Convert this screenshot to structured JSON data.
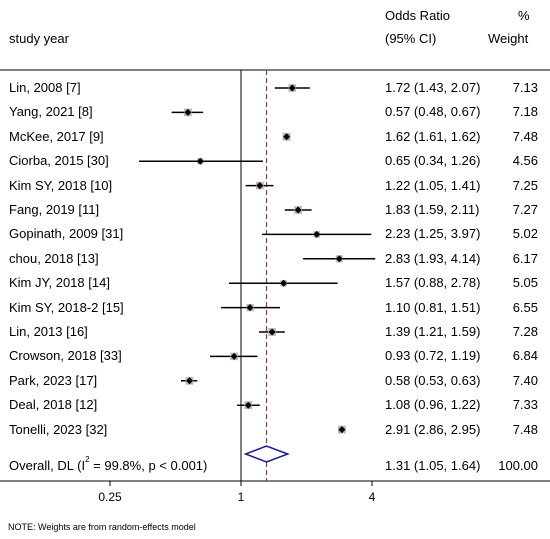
{
  "header": {
    "study_col": "study year",
    "or_col_line1": "Odds Ratio",
    "or_col_line2": "(95% CI)",
    "weight_col_line1": "%",
    "weight_col_line2": "Weight"
  },
  "note": "NOTE: Weights are from random-effects model",
  "colors": {
    "ref_line": "#8b3a4a",
    "diamond": "#1a1a8c",
    "box": "#b8b8b8"
  },
  "chart_data": {
    "type": "forest",
    "x_scale": "log",
    "null_value": 1,
    "xticks": [
      {
        "value": 0.25,
        "label": "0.25"
      },
      {
        "value": 1,
        "label": "1"
      },
      {
        "value": 4,
        "label": "4"
      }
    ],
    "studies": [
      {
        "label": "Lin, 2008 [7]",
        "or": 1.72,
        "lo": 1.43,
        "hi": 2.07,
        "ci_text": "1.72 (1.43, 2.07)",
        "weight": "7.13"
      },
      {
        "label": "Yang, 2021 [8]",
        "or": 0.57,
        "lo": 0.48,
        "hi": 0.67,
        "ci_text": "0.57 (0.48, 0.67)",
        "weight": "7.18"
      },
      {
        "label": "McKee, 2017 [9]",
        "or": 1.62,
        "lo": 1.61,
        "hi": 1.62,
        "ci_text": "1.62 (1.61, 1.62)",
        "weight": "7.48"
      },
      {
        "label": "Ciorba, 2015 [30]",
        "or": 0.65,
        "lo": 0.34,
        "hi": 1.26,
        "ci_text": "0.65 (0.34, 1.26)",
        "weight": "4.56"
      },
      {
        "label": "Kim SY, 2018 [10]",
        "or": 1.22,
        "lo": 1.05,
        "hi": 1.41,
        "ci_text": "1.22 (1.05, 1.41)",
        "weight": "7.25"
      },
      {
        "label": "Fang, 2019 [11]",
        "or": 1.83,
        "lo": 1.59,
        "hi": 2.11,
        "ci_text": "1.83 (1.59, 2.11)",
        "weight": "7.27"
      },
      {
        "label": "Gopinath, 2009 [31]",
        "or": 2.23,
        "lo": 1.25,
        "hi": 3.97,
        "ci_text": "2.23 (1.25, 3.97)",
        "weight": "5.02"
      },
      {
        "label": "chou, 2018 [13]",
        "or": 2.83,
        "lo": 1.93,
        "hi": 4.14,
        "ci_text": "2.83 (1.93, 4.14)",
        "weight": "6.17"
      },
      {
        "label": "Kim JY, 2018 [14]",
        "or": 1.57,
        "lo": 0.88,
        "hi": 2.78,
        "ci_text": "1.57 (0.88, 2.78)",
        "weight": "5.05"
      },
      {
        "label": "Kim SY, 2018-2 [15]",
        "or": 1.1,
        "lo": 0.81,
        "hi": 1.51,
        "ci_text": "1.10 (0.81, 1.51)",
        "weight": "6.55"
      },
      {
        "label": "Lin, 2013 [16]",
        "or": 1.39,
        "lo": 1.21,
        "hi": 1.59,
        "ci_text": "1.39 (1.21, 1.59)",
        "weight": "7.28"
      },
      {
        "label": "Crowson, 2018 [33]",
        "or": 0.93,
        "lo": 0.72,
        "hi": 1.19,
        "ci_text": "0.93 (0.72, 1.19)",
        "weight": "6.84"
      },
      {
        "label": "Park, 2023 [17]",
        "or": 0.58,
        "lo": 0.53,
        "hi": 0.63,
        "ci_text": "0.58 (0.53, 0.63)",
        "weight": "7.40"
      },
      {
        "label": "Deal, 2018 [12]",
        "or": 1.08,
        "lo": 0.96,
        "hi": 1.22,
        "ci_text": "1.08 (0.96, 1.22)",
        "weight": "7.33"
      },
      {
        "label": "Tonelli, 2023 [32]",
        "or": 2.91,
        "lo": 2.86,
        "hi": 2.95,
        "ci_text": "2.91 (2.86, 2.95)",
        "weight": "7.48"
      }
    ],
    "overall": {
      "label_pre": "Overall, DL (I",
      "label_sup": "2",
      "label_post": " = 99.8%, p < 0.001)",
      "or": 1.31,
      "lo": 1.05,
      "hi": 1.64,
      "ci_text": "1.31 (1.05, 1.64)",
      "weight": "100.00"
    }
  }
}
